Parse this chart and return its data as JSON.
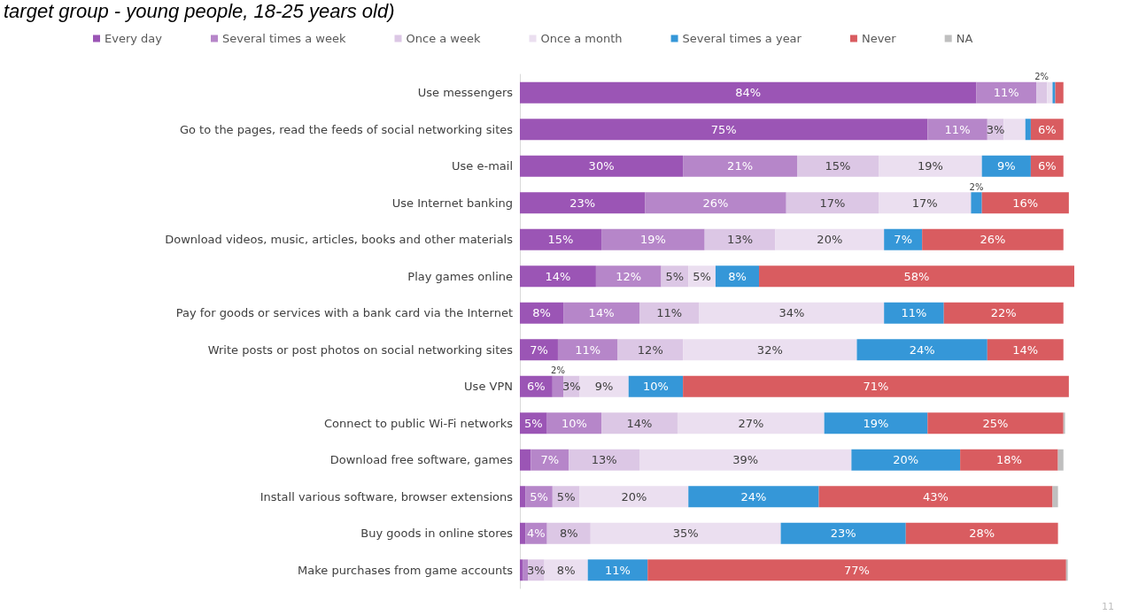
{
  "chart_data": {
    "type": "bar",
    "orientation": "horizontal",
    "stacked": true,
    "title": "target group - young people, 18-25 years old)",
    "categories": [
      "Use messengers",
      "Go to the pages, read the feeds of social networking sites",
      "Use e-mail",
      "Use Internet banking",
      "Download videos, music, articles, books and other materials",
      "Play games online",
      "Pay for goods or services with a bank card via the Internet",
      "Write posts or post photos on social networking sites",
      "Use VPN",
      "Connect to public Wi-Fi networks",
      "Download free software, games",
      "Install various software, browser extensions",
      "Buy goods in online stores",
      "Make purchases from game accounts"
    ],
    "series": [
      {
        "name": "Every day",
        "color": "#9b55b5",
        "values": [
          84,
          75,
          30,
          23,
          15,
          14,
          8,
          7,
          6,
          5,
          2,
          1,
          1,
          0.5
        ],
        "value_labels": [
          "84%",
          "75%",
          "30%",
          "23%",
          "15%",
          "14%",
          "8%",
          "7%",
          "6%",
          "5%",
          null,
          null,
          null,
          null
        ]
      },
      {
        "name": "Several times a week",
        "color": "#b686c9",
        "values": [
          11,
          11,
          21,
          26,
          19,
          12,
          14,
          11,
          2,
          10,
          7,
          5,
          4,
          1
        ],
        "value_labels": [
          "11%",
          "11%",
          "21%",
          "26%",
          "19%",
          "12%",
          "14%",
          "11%",
          "2%",
          "10%",
          "7%",
          "5%",
          "4%",
          null
        ]
      },
      {
        "name": "Once a week",
        "color": "#dcc7e5",
        "values": [
          2,
          3,
          15,
          17,
          13,
          5,
          11,
          12,
          3,
          14,
          13,
          5,
          8,
          3
        ],
        "value_labels": [
          "2%",
          "3%",
          "15%",
          "17%",
          "13%",
          "5%",
          "11%",
          "12%",
          "3%",
          "14%",
          "13%",
          "5%",
          "8%",
          "3%"
        ]
      },
      {
        "name": "Once a month",
        "color": "#ebdff0",
        "values": [
          1,
          4,
          19,
          17,
          20,
          5,
          34,
          32,
          9,
          27,
          39,
          20,
          35,
          8
        ],
        "value_labels": [
          null,
          null,
          "19%",
          "17%",
          "20%",
          "5%",
          "34%",
          "32%",
          "9%",
          "27%",
          "39%",
          "20%",
          "35%",
          "8%"
        ]
      },
      {
        "name": "Several times a year",
        "color": "#3597d8",
        "values": [
          0.5,
          1,
          9,
          2,
          7,
          8,
          11,
          24,
          10,
          19,
          20,
          24,
          23,
          11
        ],
        "value_labels": [
          null,
          null,
          "9%",
          "2%",
          "7%",
          "8%",
          "11%",
          "24%",
          "10%",
          "19%",
          "20%",
          "24%",
          "23%",
          "11%"
        ]
      },
      {
        "name": "Never",
        "color": "#d95c60",
        "values": [
          1.5,
          6,
          6,
          16,
          26,
          58,
          22,
          14,
          71,
          25,
          18,
          43,
          28,
          77
        ],
        "value_labels": [
          null,
          "6%",
          "6%",
          "16%",
          "26%",
          "58%",
          "22%",
          "14%",
          "71%",
          "25%",
          "18%",
          "43%",
          "28%",
          "77%"
        ]
      },
      {
        "name": "NA",
        "color": "#bfbfbf",
        "values": [
          0,
          0,
          0,
          0,
          0,
          0,
          0,
          0,
          0,
          0.3,
          1,
          1,
          0,
          0.3
        ],
        "value_labels": [
          null,
          null,
          null,
          null,
          null,
          null,
          null,
          null,
          null,
          null,
          null,
          null,
          null,
          null
        ]
      }
    ],
    "legend": "top",
    "annotations": [
      "11"
    ]
  }
}
